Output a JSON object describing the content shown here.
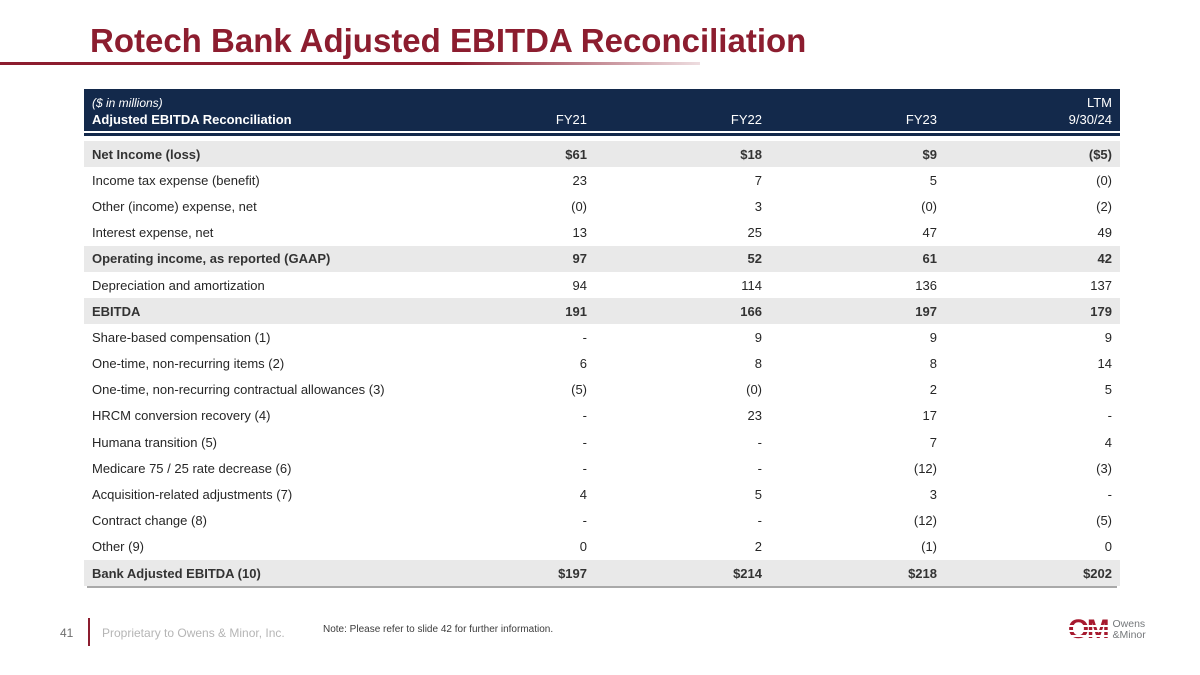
{
  "title": "Rotech Bank Adjusted EBITDA Reconciliation",
  "table": {
    "units_note": "($ in millions)",
    "header_label": "Adjusted EBITDA Reconciliation",
    "ltm_label": "LTM",
    "columns": [
      "FY21",
      "FY22",
      "FY23",
      "9/30/24"
    ],
    "rows": [
      {
        "label": "Net Income (loss)",
        "values": [
          "$61",
          "$18",
          "$9",
          "($5)"
        ],
        "emphasis": true
      },
      {
        "label": "Income tax expense (benefit)",
        "values": [
          "23",
          "7",
          "5",
          "(0)"
        ],
        "emphasis": false
      },
      {
        "label": "Other (income) expense, net",
        "values": [
          "(0)",
          "3",
          "(0)",
          "(2)"
        ],
        "emphasis": false
      },
      {
        "label": "Interest expense, net",
        "values": [
          "13",
          "25",
          "47",
          "49"
        ],
        "emphasis": false
      },
      {
        "label": "Operating income, as reported (GAAP)",
        "values": [
          "97",
          "52",
          "61",
          "42"
        ],
        "emphasis": true
      },
      {
        "label": "Depreciation and amortization",
        "values": [
          "94",
          "114",
          "136",
          "137"
        ],
        "emphasis": false
      },
      {
        "label": "EBITDA",
        "values": [
          "191",
          "166",
          "197",
          "179"
        ],
        "emphasis": true
      },
      {
        "label": "Share-based compensation (1)",
        "values": [
          "-",
          "9",
          "9",
          "9"
        ],
        "emphasis": false
      },
      {
        "label": "One-time, non-recurring items (2)",
        "values": [
          "6",
          "8",
          "8",
          "14"
        ],
        "emphasis": false
      },
      {
        "label": "One-time, non-recurring contractual allowances (3)",
        "values": [
          "(5)",
          "(0)",
          "2",
          "5"
        ],
        "emphasis": false
      },
      {
        "label": "HRCM conversion recovery (4)",
        "values": [
          "-",
          "23",
          "17",
          "-"
        ],
        "emphasis": false
      },
      {
        "label": "Humana transition (5)",
        "values": [
          "-",
          "-",
          "7",
          "4"
        ],
        "emphasis": false
      },
      {
        "label": "Medicare 75 / 25 rate decrease (6)",
        "values": [
          "-",
          "-",
          "(12)",
          "(3)"
        ],
        "emphasis": false
      },
      {
        "label": "Acquisition-related adjustments (7)",
        "values": [
          "4",
          "5",
          "3",
          "-"
        ],
        "emphasis": false
      },
      {
        "label": "Contract change (8)",
        "values": [
          "-",
          "-",
          "(12)",
          "(5)"
        ],
        "emphasis": false
      },
      {
        "label": "Other (9)",
        "values": [
          "0",
          "2",
          "(1)",
          "0"
        ],
        "emphasis": false
      },
      {
        "label": "Bank Adjusted EBITDA (10)",
        "values": [
          "$197",
          "$214",
          "$218",
          "$202"
        ],
        "emphasis": true,
        "total": true
      }
    ]
  },
  "footer": {
    "page_number": "41",
    "proprietary": "Proprietary to Owens & Minor, Inc.",
    "note": "Note: Please refer to slide 42 for further information.",
    "logo": {
      "monogram": "OM",
      "line1": "Owens",
      "line2": "&Minor"
    }
  },
  "colors": {
    "accent_maroon": "#8C1D2F",
    "header_navy": "#13294B",
    "row_gray": "#E9E9E9",
    "total_rule_gray": "#A9A9A9",
    "logo_red": "#A6192E",
    "logo_gray": "#75787B"
  }
}
